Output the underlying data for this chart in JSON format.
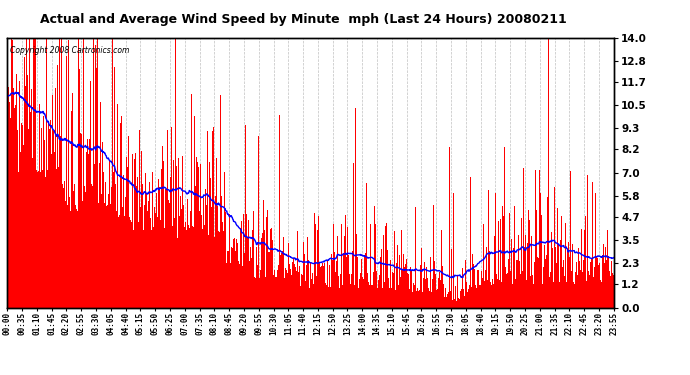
{
  "title": "Actual and Average Wind Speed by Minute  mph (Last 24 Hours) 20080211",
  "copyright": "Copyright 2008 Cartronics.com",
  "bar_color": "#FF0000",
  "line_color": "#0000FF",
  "background_color": "#FFFFFF",
  "grid_color": "#C0C0C0",
  "yticks": [
    0.0,
    1.2,
    2.3,
    3.5,
    4.7,
    5.8,
    7.0,
    8.2,
    9.3,
    10.5,
    11.7,
    12.8,
    14.0
  ],
  "ylim": [
    0.0,
    14.0
  ],
  "xtick_labels": [
    "00:00",
    "00:35",
    "01:10",
    "01:45",
    "02:20",
    "02:55",
    "03:30",
    "04:05",
    "04:40",
    "05:15",
    "05:50",
    "06:25",
    "07:00",
    "07:35",
    "08:10",
    "08:45",
    "09:20",
    "09:55",
    "10:30",
    "11:05",
    "11:40",
    "12:15",
    "12:50",
    "13:25",
    "14:00",
    "14:35",
    "15:10",
    "15:45",
    "16:20",
    "16:55",
    "17:30",
    "18:05",
    "18:40",
    "19:15",
    "19:50",
    "20:25",
    "21:00",
    "21:35",
    "22:10",
    "22:45",
    "23:20",
    "23:55"
  ]
}
